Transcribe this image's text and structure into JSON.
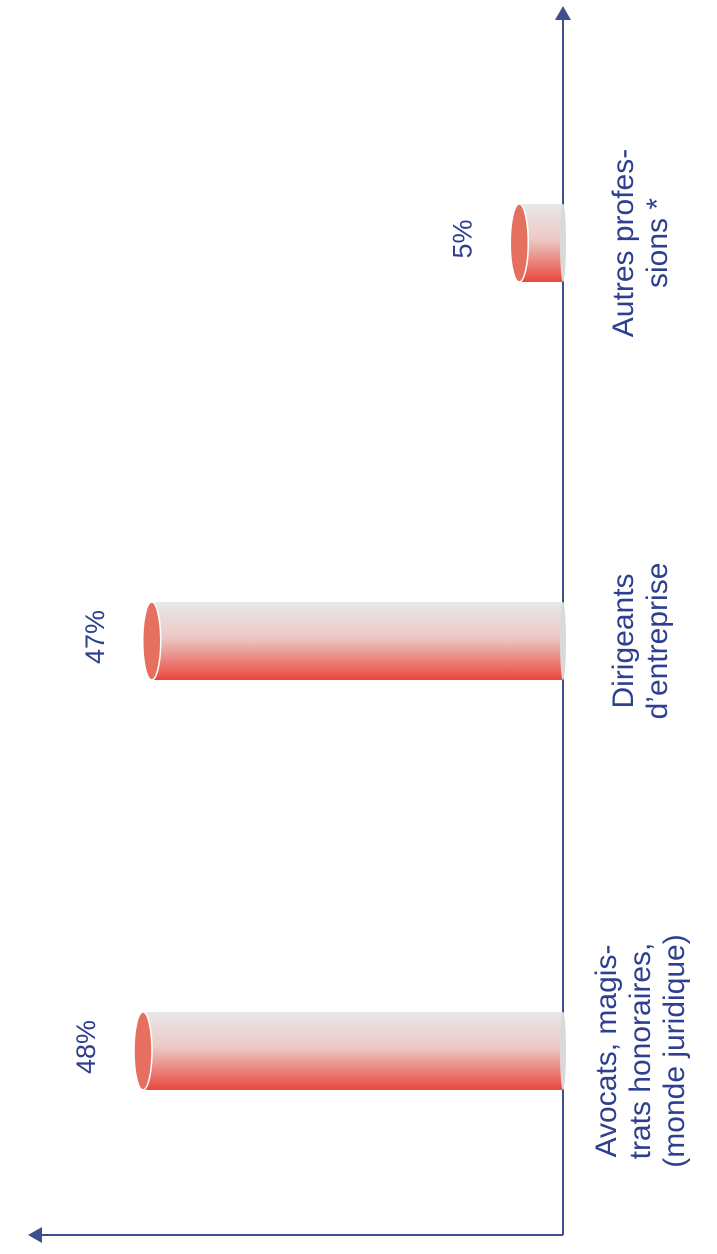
{
  "chart_data": {
    "type": "bar",
    "orientation": "rotated-90",
    "categories": [
      [
        "Avocats, magis-",
        "trats honoraires,",
        "(monde juridique)"
      ],
      [
        "Dirigeants",
        "d’entreprise"
      ],
      [
        "Autres profes-",
        "sions *"
      ]
    ],
    "values": [
      48,
      47,
      5
    ],
    "value_labels": [
      "48%",
      "47%",
      "5%"
    ],
    "ylim": [
      0,
      50
    ],
    "grid": false,
    "legend": "none",
    "colors": {
      "axis": "#3d4f8f",
      "bar_top": "#e8e8e8",
      "bar_bottom": "#e8473b",
      "cap": "#e67060",
      "text": "#2e3f8f"
    }
  }
}
